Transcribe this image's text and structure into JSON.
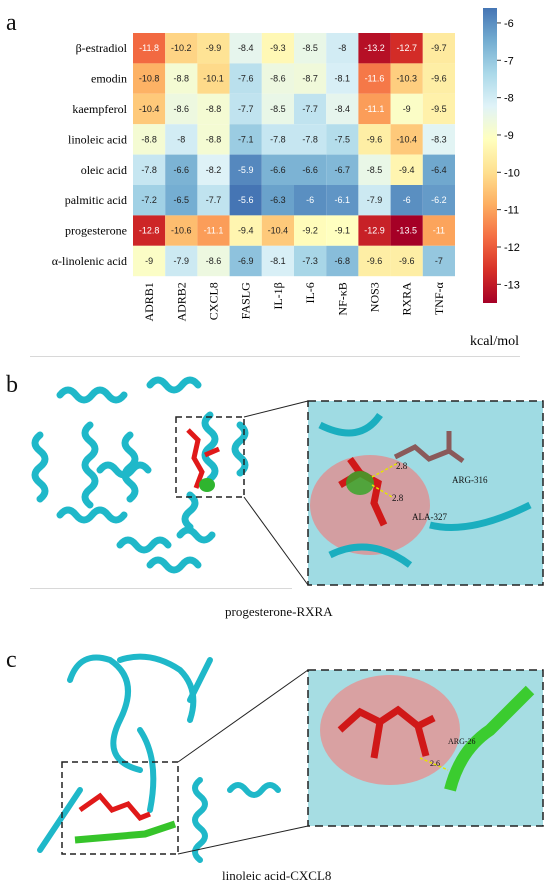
{
  "panels": {
    "a": "a",
    "b": "b",
    "c": "c"
  },
  "captions": {
    "b": "progesterone-RXRA",
    "c": "linoleic acid-CXCL8"
  },
  "residue_labels": {
    "b": [
      "ARG-316",
      "ALA-327"
    ],
    "b_distances": [
      "2.8",
      "2.8"
    ],
    "c": [
      "ARG-26"
    ],
    "c_distances": [
      "2.6"
    ]
  },
  "chart_data": {
    "type": "heatmap",
    "rows": [
      "β-estradiol",
      "emodin",
      "kaempferol",
      "linoleic acid",
      "oleic acid",
      "palmitic acid",
      "progesterone",
      "α-linolenic acid"
    ],
    "columns": [
      "ADRB1",
      "ADRB2",
      "CXCL8",
      "FASLG",
      "IL-1β",
      "IL-6",
      "NF-κB",
      "NOS3",
      "RXRA",
      "TNF-α"
    ],
    "values": [
      [
        -11.8,
        -10.2,
        -9.9,
        -8.4,
        -9.3,
        -8.5,
        -8,
        -13.2,
        -12.7,
        -9.7
      ],
      [
        -10.8,
        -8.8,
        -10.1,
        -7.6,
        -8.6,
        -8.7,
        -8.1,
        -11.6,
        -10.3,
        -9.6
      ],
      [
        -10.4,
        -8.6,
        -8.8,
        -7.7,
        -8.5,
        -7.7,
        -8.4,
        -11.1,
        -9,
        -9.5
      ],
      [
        -8.8,
        -8,
        -8.8,
        -7.1,
        -7.8,
        -7.8,
        -7.5,
        -9.6,
        -10.4,
        -8.3
      ],
      [
        -7.8,
        -6.6,
        -8.2,
        -5.9,
        -6.6,
        -6.6,
        -6.7,
        -8.5,
        -9.4,
        -6.4
      ],
      [
        -7.2,
        -6.5,
        -7.7,
        -5.6,
        -6.3,
        -6,
        -6.1,
        -7.9,
        -6,
        -6.2
      ],
      [
        -12.8,
        -10.6,
        -11.1,
        -9.4,
        -10.4,
        -9.2,
        -9.1,
        -12.9,
        -13.5,
        -11
      ],
      [
        -9,
        -7.9,
        -8.6,
        -6.9,
        -8.1,
        -7.3,
        -6.8,
        -9.6,
        -9.6,
        -7
      ]
    ],
    "colorbar": {
      "label": "kcal/mol",
      "range": [
        -13.5,
        -5.6
      ],
      "ticks": [
        -6,
        -7,
        -8,
        -9,
        -10,
        -11,
        -12,
        -13
      ],
      "colors": [
        "#a50026",
        "#d73027",
        "#f46d43",
        "#fdae61",
        "#fee090",
        "#ffffbf",
        "#e0f3f8",
        "#abd9e9",
        "#74add1",
        "#4575b4"
      ]
    }
  }
}
